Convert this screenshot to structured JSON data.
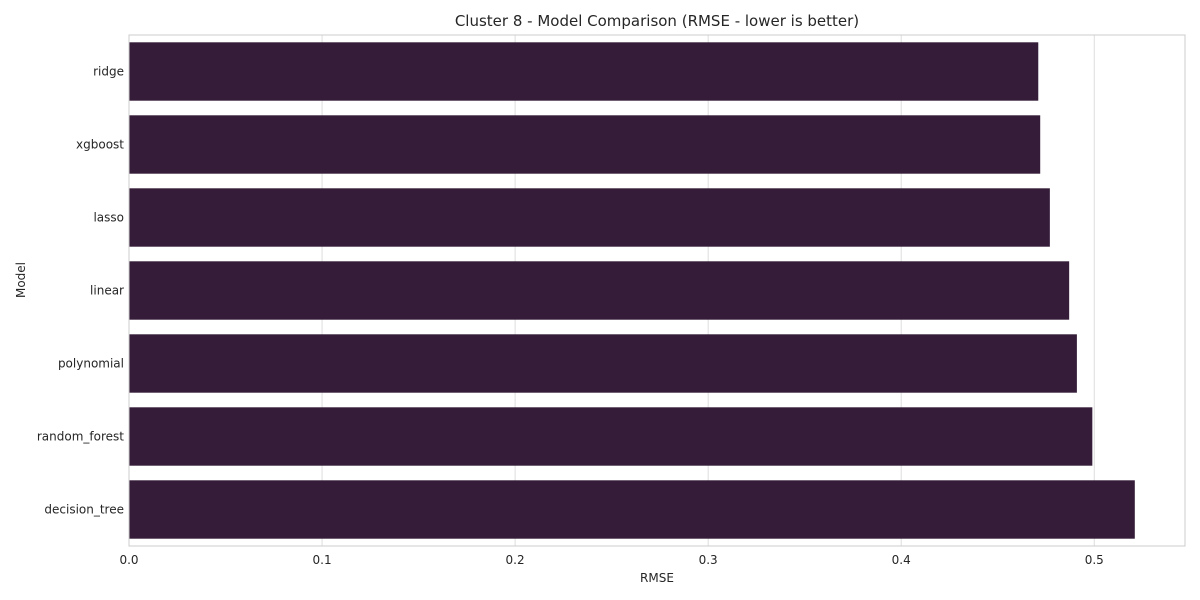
{
  "chart_data": {
    "type": "bar",
    "orientation": "horizontal",
    "title": "Cluster 8 - Model Comparison (RMSE - lower is better)",
    "xlabel": "RMSE",
    "ylabel": "Model",
    "categories": [
      "ridge",
      "xgboost",
      "lasso",
      "linear",
      "polynomial",
      "random_forest",
      "decision_tree"
    ],
    "values": [
      0.471,
      0.472,
      0.477,
      0.487,
      0.491,
      0.499,
      0.521
    ],
    "xlim": [
      0.0,
      0.547
    ],
    "xticks": [
      0.0,
      0.1,
      0.2,
      0.3,
      0.4,
      0.5
    ],
    "xtick_labels": [
      "0.0",
      "0.1",
      "0.2",
      "0.3",
      "0.4",
      "0.5"
    ],
    "grid": true,
    "bar_color": "#351d39",
    "grid_color": "#dddddd",
    "spine_color": "#cccccc"
  }
}
